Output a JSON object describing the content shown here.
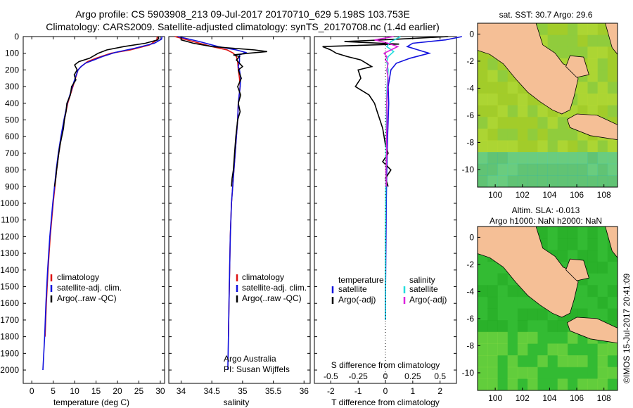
{
  "header": {
    "line1": "Argo profile: CS 5903908_213 09-Jul-2017 20170710_629 5.198S 103.753E",
    "line2": "Climatology: CARS2009. Satellite-adjusted climatology: synTS_20170708.nc (1.4d earlier)"
  },
  "colors": {
    "climatology": "#dd1111",
    "satellite": "#1111dd",
    "argo": "#000000",
    "sat_s": "#22dddd",
    "argo_s": "#dd22dd",
    "land": "#f5bf96",
    "sst_ocean": "#99cc33",
    "sla_ocean": "#33bb33"
  },
  "side_text": "©IMOS 15-Jul-2017 20:41:09",
  "chart_data": [
    {
      "type": "line",
      "id": "temperature",
      "xlabel": "temperature (deg C)",
      "ylabel": "",
      "xlim": [
        -2,
        31
      ],
      "ylim": [
        2080,
        0
      ],
      "xticks": [
        "0",
        "5",
        "10",
        "15",
        "20",
        "25",
        "30"
      ],
      "yticks": [
        "0",
        "100",
        "200",
        "300",
        "400",
        "500",
        "600",
        "700",
        "800",
        "900",
        "1000",
        "1100",
        "1200",
        "1300",
        "1400",
        "1500",
        "1600",
        "1700",
        "1800",
        "1900",
        "2000"
      ],
      "legend": [
        "climatology",
        "satellite-adj. clim.",
        "Argo(..raw -QC)"
      ],
      "series": [
        {
          "name": "climatology",
          "y": [
            0,
            20,
            50,
            80,
            100,
            130,
            150,
            180,
            200,
            250,
            300,
            400,
            500,
            600,
            700,
            800,
            900,
            1000,
            1200,
            1400,
            1600,
            1800
          ],
          "x": [
            29.3,
            29.2,
            27.5,
            23,
            18.5,
            15,
            13,
            11.5,
            10.8,
            10.2,
            9.6,
            8.4,
            7.6,
            6.9,
            6.3,
            5.8,
            5.4,
            5.0,
            4.3,
            3.8,
            3.4,
            3.1
          ]
        },
        {
          "name": "satellite-adj. clim.",
          "y": [
            0,
            15,
            40,
            70,
            95,
            120,
            140,
            160,
            180,
            200,
            250,
            300,
            400,
            500,
            600,
            700,
            800,
            900,
            1000,
            1200,
            1400,
            1600,
            1800,
            2000
          ],
          "x": [
            30.4,
            30.3,
            28.6,
            24,
            19.5,
            16.5,
            14.5,
            12.5,
            11.5,
            10.8,
            10.1,
            9.5,
            8.3,
            7.5,
            6.8,
            6.2,
            5.7,
            5.3,
            4.9,
            4.2,
            3.7,
            3.3,
            3.0,
            2.6
          ]
        },
        {
          "name": "Argo(..raw -QC)",
          "y": [
            0,
            10,
            20,
            40,
            60,
            80,
            100,
            130,
            150,
            170,
            200,
            230,
            260,
            300,
            350,
            400,
            450,
            500,
            550,
            600,
            650,
            700,
            800,
            850,
            900
          ],
          "x": [
            29.5,
            29.6,
            29.4,
            26.5,
            21.5,
            17.5,
            15.5,
            13.5,
            11.0,
            10.0,
            10.6,
            9.9,
            10.3,
            9.3,
            9.0,
            8.2,
            8.0,
            7.6,
            7.4,
            7.0,
            6.6,
            6.3,
            5.8,
            5.6,
            5.3
          ]
        }
      ]
    },
    {
      "type": "line",
      "id": "salinity",
      "xlabel": "salinity",
      "ylabel": "",
      "xlim": [
        33.8,
        36.1
      ],
      "ylim": [
        2080,
        0
      ],
      "xticks": [
        "34",
        "34.5",
        "35",
        "35.5",
        "36"
      ],
      "legend": [
        "climatology",
        "satellite-adj. clim.",
        "Argo(..raw -QC)"
      ],
      "annotation": [
        "Argo Australia",
        "PI: Susan Wijffels"
      ],
      "series": [
        {
          "name": "climatology",
          "y": [
            0,
            30,
            60,
            80,
            100,
            120,
            150,
            200,
            250,
            300,
            400,
            500,
            600,
            800,
            1000,
            1200,
            1400,
            1600,
            1800
          ],
          "x": [
            33.9,
            34.2,
            34.5,
            34.75,
            34.85,
            34.9,
            34.92,
            34.93,
            34.95,
            34.96,
            34.93,
            34.92,
            34.9,
            34.86,
            34.82,
            34.8,
            34.79,
            34.78,
            34.77
          ]
        },
        {
          "name": "satellite-adj. clim.",
          "y": [
            0,
            30,
            60,
            80,
            95,
            110,
            130,
            150,
            180,
            200,
            250,
            300,
            400,
            500,
            600,
            800,
            1000,
            1200,
            1400,
            1600,
            1800,
            2000
          ],
          "x": [
            33.95,
            34.3,
            34.6,
            34.9,
            35.05,
            34.95,
            34.95,
            34.95,
            34.93,
            34.95,
            34.97,
            34.96,
            34.93,
            34.92,
            34.9,
            34.86,
            34.82,
            34.8,
            34.79,
            34.78,
            34.77,
            34.76
          ]
        },
        {
          "name": "Argo(..raw -QC)",
          "y": [
            0,
            20,
            40,
            60,
            80,
            90,
            100,
            110,
            120,
            140,
            160,
            180,
            200,
            250,
            300,
            350,
            400,
            450,
            500,
            600,
            700,
            800,
            850,
            900
          ],
          "x": [
            34.0,
            34.0,
            34.2,
            34.5,
            35.2,
            35.4,
            35.1,
            34.85,
            34.95,
            34.9,
            34.95,
            35.0,
            34.93,
            34.98,
            34.92,
            34.97,
            34.93,
            34.96,
            34.92,
            34.89,
            34.87,
            34.85,
            34.83,
            34.82
          ]
        }
      ]
    },
    {
      "type": "line",
      "id": "differences",
      "xlabel": "T difference from climatology",
      "xlabel_top": "S difference from climatology",
      "xlim": [
        -2.6,
        2.6
      ],
      "ylim": [
        2080,
        0
      ],
      "xticks": [
        "-2",
        "-1",
        "0",
        "1",
        "2"
      ],
      "xticks_s": [
        "-0.5",
        "-0.25",
        "0",
        "0.25",
        "0.5"
      ],
      "legend_t_title": "temperature",
      "legend_s_title": "salinity",
      "legend_t": [
        "satellite",
        "Argo(-adj)"
      ],
      "legend_s": [
        "satellite",
        "Argo(-adj)"
      ],
      "series": [
        {
          "name": "T satellite",
          "y": [
            0,
            20,
            40,
            60,
            80,
            100,
            130,
            160,
            200,
            300,
            400,
            600,
            800,
            1000,
            1200,
            1400,
            1600,
            1700
          ],
          "x": [
            2.8,
            2.2,
            1.0,
            0.8,
            1.2,
            1.6,
            0.9,
            0.4,
            0.2,
            0.1,
            0.12,
            0.08,
            0.05,
            0.03,
            0.02,
            0.01,
            0.0,
            0.0
          ]
        },
        {
          "name": "T Argo(-adj)",
          "y": [
            0,
            15,
            30,
            45,
            60,
            80,
            100,
            120,
            140,
            160,
            180,
            200,
            250,
            300,
            350,
            400,
            450,
            500,
            550,
            600,
            650,
            700,
            750,
            800,
            850,
            900
          ],
          "x": [
            2.3,
            0.5,
            -1.5,
            0.5,
            -2.3,
            -2.0,
            -1.8,
            -1.4,
            -0.9,
            -0.7,
            -0.5,
            -1.0,
            -0.9,
            -1.1,
            -0.6,
            -0.4,
            -0.3,
            -0.2,
            -0.1,
            -0.05,
            0.0,
            0.1,
            -0.1,
            0.2,
            0.0,
            0.1
          ]
        },
        {
          "name": "S satellite",
          "y": [
            0,
            30,
            60,
            90,
            120,
            150,
            200,
            300,
            400,
            600,
            800,
            1000,
            1200,
            1400,
            1600,
            1700
          ],
          "x": [
            0.55,
            0.2,
            0.05,
            0.3,
            0.1,
            0.05,
            0.1,
            0.06,
            0.04,
            0.03,
            0.02,
            0.01,
            0.0,
            0.0,
            0.0,
            0.0
          ]
        },
        {
          "name": "S Argo(-adj)",
          "y": [
            0,
            20,
            40,
            60,
            80,
            100,
            120,
            140,
            160,
            200,
            250,
            300,
            400,
            500,
            600,
            700,
            800,
            900
          ],
          "x": [
            0.3,
            -0.4,
            0.1,
            0.45,
            0.2,
            -0.05,
            0.05,
            0.0,
            0.1,
            0.05,
            0.1,
            0.08,
            0.05,
            0.06,
            0.04,
            0.05,
            0.02,
            0.03
          ]
        }
      ]
    },
    {
      "type": "heatmap",
      "id": "sst_map",
      "title": "sat. SST: 30.7 Argo: 29.6",
      "xticks": [
        "100",
        "102",
        "104",
        "106",
        "108"
      ],
      "yticks": [
        "0",
        "-2",
        "-4",
        "-6",
        "-8",
        "-10"
      ],
      "xlim": [
        98.7,
        109
      ],
      "ylim": [
        -11.3,
        0.8
      ]
    },
    {
      "type": "heatmap",
      "id": "sla_map",
      "title": "Altim. SLA: -0.013",
      "subtitle": "Argo h1000: NaN h2000: NaN",
      "xticks": [
        "100",
        "102",
        "104",
        "106",
        "108"
      ],
      "yticks": [
        "0",
        "-2",
        "-4",
        "-6",
        "-8",
        "-10"
      ],
      "xlim": [
        98.7,
        109
      ],
      "ylim": [
        -11.3,
        0.8
      ]
    }
  ]
}
